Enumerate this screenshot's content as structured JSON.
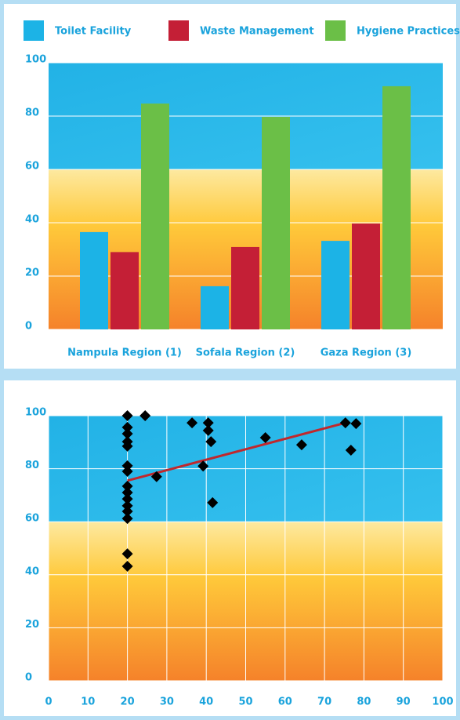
{
  "chart_data": [
    {
      "type": "bar",
      "categories": [
        "Nampula Region (1)",
        "Sofala Region (2)",
        "Gaza Region (3)"
      ],
      "series": [
        {
          "name": "Toilet Facility",
          "color": "#1cb3e6",
          "values": [
            36.5,
            16.2,
            33.2
          ]
        },
        {
          "name": "Waste Management",
          "color": "#c41f36",
          "values": [
            29,
            30.9,
            39.7
          ]
        },
        {
          "name": "Hygiene Practices",
          "color": "#6bbf47",
          "values": [
            84.7,
            79.7,
            91.2
          ]
        }
      ],
      "ylim": [
        0,
        100
      ],
      "yticks": [
        0,
        20,
        40,
        60,
        80,
        100
      ],
      "grid": true
    },
    {
      "type": "scatter",
      "x": [
        20,
        20,
        20,
        20,
        20,
        20,
        20,
        20,
        20,
        20,
        20,
        20,
        20,
        20,
        20,
        24.5,
        27.4,
        36.4,
        39.2,
        40.5,
        40.5,
        41.2,
        41.6,
        55,
        64.2,
        75.3,
        76.7,
        78
      ],
      "y": [
        100,
        95.6,
        93.2,
        90.2,
        88.5,
        81.1,
        79,
        73.4,
        71,
        68.6,
        66,
        63.9,
        61.2,
        47.9,
        43.2,
        100,
        77,
        97.3,
        81,
        97.3,
        94.4,
        90.2,
        67.2,
        91.7,
        89,
        97.3,
        87,
        97
      ],
      "color": "#000000",
      "trendline": {
        "x": [
          20,
          74.5
        ],
        "y": [
          75.5,
          97
        ],
        "color": "#c0282d"
      },
      "xlim": [
        0,
        100
      ],
      "xticks": [
        0,
        10,
        20,
        30,
        40,
        50,
        60,
        70,
        80,
        90,
        100
      ],
      "ylim": [
        0,
        100
      ],
      "yticks": [
        0,
        20,
        40,
        60,
        80,
        100
      ],
      "grid": true
    }
  ]
}
